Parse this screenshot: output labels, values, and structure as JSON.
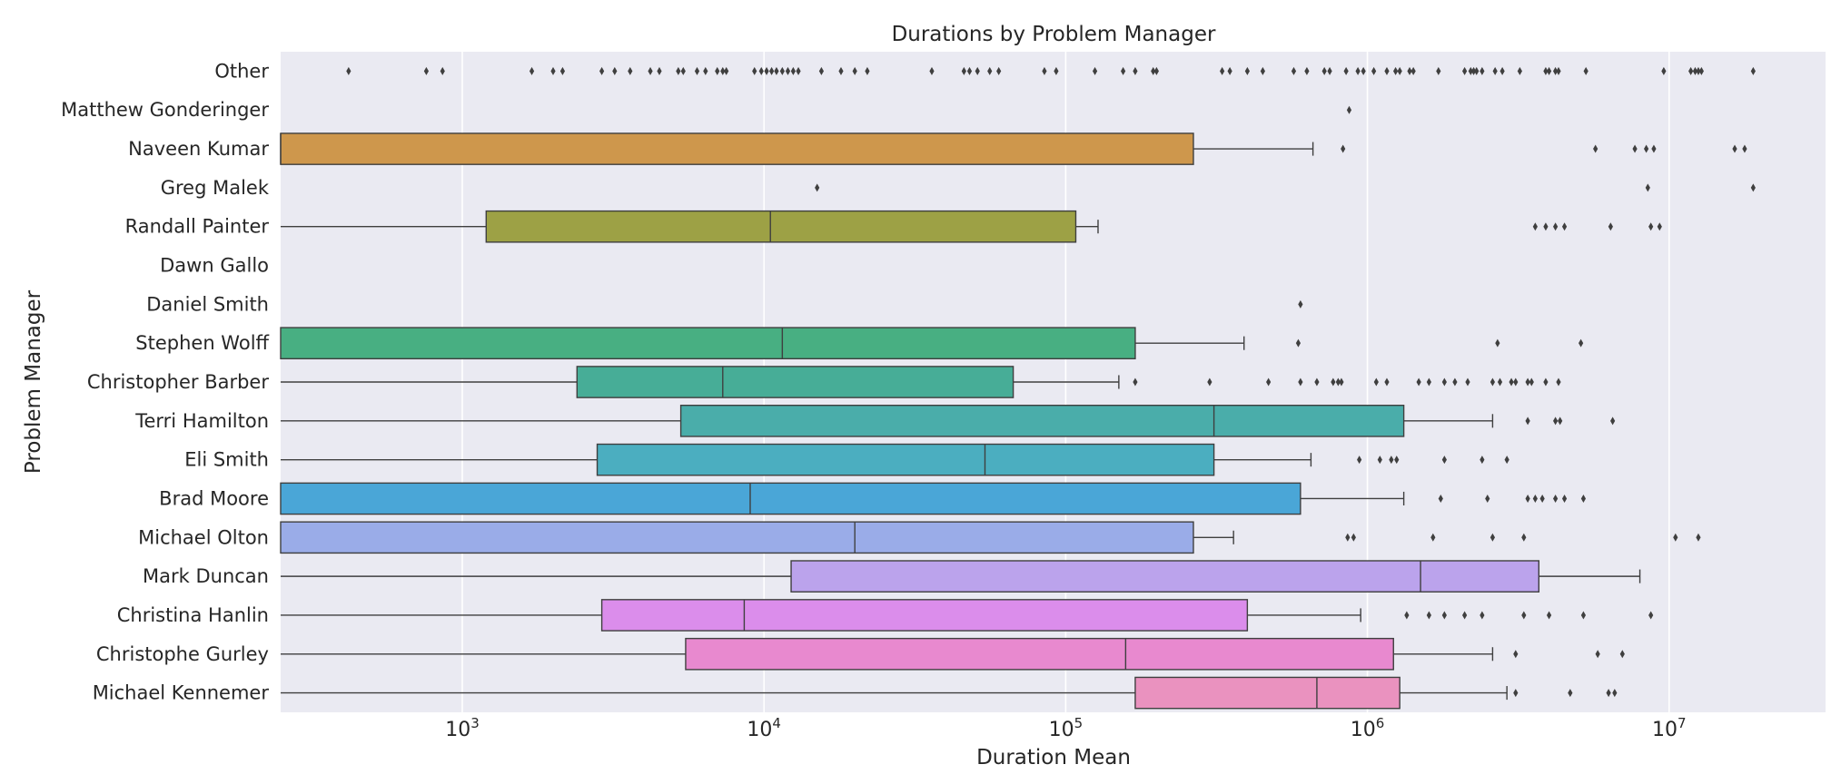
{
  "chart_data": {
    "type": "boxplot",
    "orientation": "horizontal",
    "title": "Durations by Problem Manager",
    "xlabel": "Duration Mean",
    "ylabel": "Problem Manager",
    "x_scale": "log",
    "xlim": [
      250,
      33000000
    ],
    "x_ticks": [
      {
        "value": 1000,
        "base": "10",
        "exp": "3"
      },
      {
        "value": 10000,
        "base": "10",
        "exp": "4"
      },
      {
        "value": 100000,
        "base": "10",
        "exp": "5"
      },
      {
        "value": 1000000,
        "base": "10",
        "exp": "6"
      },
      {
        "value": 10000000,
        "base": "10",
        "exp": "7"
      }
    ],
    "background_color": "#eaeaf2",
    "grid": "vertical",
    "categories": [
      {
        "name": "Other",
        "color": "#e1e1ea",
        "box": null,
        "outliers": [
          420,
          760,
          860,
          1700,
          2000,
          2150,
          2900,
          3200,
          3600,
          4200,
          4500,
          5200,
          5400,
          6000,
          6400,
          7000,
          7300,
          7500,
          9300,
          9800,
          10200,
          10600,
          11000,
          11500,
          12000,
          12500,
          13000,
          15500,
          18000,
          20000,
          22000,
          36000,
          46000,
          48000,
          51000,
          56000,
          60000,
          85000,
          93000,
          125000,
          155000,
          170000,
          195000,
          200000,
          330000,
          350000,
          400000,
          450000,
          570000,
          630000,
          720000,
          750000,
          850000,
          930000,
          970000,
          1050000,
          1160000,
          1240000,
          1280000,
          1380000,
          1420000,
          1720000,
          2100000,
          2200000,
          2250000,
          2300000,
          2400000,
          2650000,
          2800000,
          3200000,
          3900000,
          4000000,
          4200000,
          4300000,
          5300000,
          9600000,
          11800000,
          12200000,
          12500000,
          12800000,
          19000000
        ]
      },
      {
        "name": "Matthew Gonderinger",
        "color": "#e1e1ea",
        "box": null,
        "outliers": [
          870000
        ]
      },
      {
        "name": "Naveen Kumar",
        "color": "#ce974c",
        "box": {
          "whislo": 250,
          "q1": 250,
          "med": 250,
          "q3": 265000,
          "whishi": 660000
        },
        "outliers": [
          830000,
          5700000,
          7700000,
          8400000,
          8900000,
          16500000,
          17800000
        ]
      },
      {
        "name": "Greg Malek",
        "color": "#e1e1ea",
        "box": null,
        "outliers": [
          15000,
          8500000,
          19000000
        ]
      },
      {
        "name": "Randall Painter",
        "color": "#9da145",
        "box": {
          "whislo": 250,
          "q1": 1200,
          "med": 10500,
          "q3": 108000,
          "whishi": 128000
        },
        "outliers": [
          3600000,
          3900000,
          4200000,
          4500000,
          6400000,
          8700000,
          9300000
        ]
      },
      {
        "name": "Dawn Gallo",
        "color": "#e1e1ea",
        "box": null,
        "outliers": []
      },
      {
        "name": "Daniel Smith",
        "color": "#e1e1ea",
        "box": null,
        "outliers": [
          600000
        ]
      },
      {
        "name": "Stephen Wolff",
        "color": "#48af82",
        "box": {
          "whislo": 250,
          "q1": 250,
          "med": 11500,
          "q3": 170000,
          "whishi": 390000
        },
        "outliers": [
          590000,
          2700000,
          5100000
        ]
      },
      {
        "name": "Christopher Barber",
        "color": "#47ad97",
        "box": {
          "whislo": 250,
          "q1": 2400,
          "med": 7300,
          "q3": 67000,
          "whishi": 150000
        },
        "outliers": [
          170000,
          300000,
          470000,
          600000,
          680000,
          770000,
          800000,
          820000,
          1070000,
          1160000,
          1480000,
          1600000,
          1800000,
          1950000,
          2150000,
          2600000,
          2750000,
          3000000,
          3100000,
          3400000,
          3500000,
          3900000,
          4300000
        ]
      },
      {
        "name": "Terri Hamilton",
        "color": "#4aadaa",
        "box": {
          "whislo": 250,
          "q1": 5300,
          "med": 310000,
          "q3": 1320000,
          "whishi": 2600000
        },
        "outliers": [
          3400000,
          4200000,
          4350000,
          6500000
        ]
      },
      {
        "name": "Eli Smith",
        "color": "#4baec0",
        "box": {
          "whislo": 250,
          "q1": 2800,
          "med": 54000,
          "q3": 310000,
          "whishi": 650000
        },
        "outliers": [
          940000,
          1100000,
          1200000,
          1250000,
          1800000,
          2400000,
          2900000
        ]
      },
      {
        "name": "Brad Moore",
        "color": "#4aa6d7",
        "box": {
          "whislo": 250,
          "q1": 250,
          "med": 9000,
          "q3": 600000,
          "whishi": 1320000
        },
        "outliers": [
          1750000,
          2500000,
          3400000,
          3600000,
          3800000,
          4200000,
          4500000,
          5200000
        ]
      },
      {
        "name": "Michael Olton",
        "color": "#9aace8",
        "box": {
          "whislo": 250,
          "q1": 250,
          "med": 20000,
          "q3": 265000,
          "whishi": 360000
        },
        "outliers": [
          860000,
          900000,
          1650000,
          2600000,
          3300000,
          10500000,
          12500000
        ]
      },
      {
        "name": "Mark Duncan",
        "color": "#bba3ec",
        "box": {
          "whislo": 250,
          "q1": 12300,
          "med": 1500000,
          "q3": 3700000,
          "whishi": 8000000
        },
        "outliers": []
      },
      {
        "name": "Christina Hanlin",
        "color": "#db8deb",
        "box": {
          "whislo": 250,
          "q1": 2900,
          "med": 8600,
          "q3": 400000,
          "whishi": 950000
        },
        "outliers": [
          1350000,
          1600000,
          1800000,
          2100000,
          2400000,
          3300000,
          4000000,
          5200000,
          8700000
        ]
      },
      {
        "name": "Christophe Gurley",
        "color": "#e889cf",
        "box": {
          "whislo": 250,
          "q1": 5500,
          "med": 158000,
          "q3": 1220000,
          "whishi": 2600000
        },
        "outliers": [
          3100000,
          5800000,
          7000000
        ]
      },
      {
        "name": "Michael Kennemer",
        "color": "#ea92bf",
        "box": {
          "whislo": 250,
          "q1": 170000,
          "med": 680000,
          "q3": 1280000,
          "whishi": 2900000
        },
        "outliers": [
          3100000,
          4700000,
          6300000,
          6600000
        ]
      }
    ]
  }
}
